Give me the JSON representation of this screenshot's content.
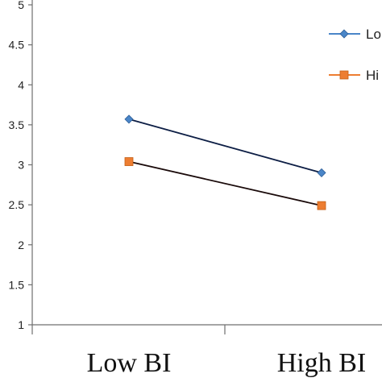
{
  "chart_data": {
    "type": "line",
    "categories": [
      "Low BI",
      "High BI"
    ],
    "ylim": [
      1,
      5
    ],
    "yticks": [
      "1",
      "1.5",
      "2",
      "2.5",
      "3",
      "3.5",
      "4",
      "4.5",
      "5"
    ],
    "series": [
      {
        "name": "Lo",
        "values": [
          3.57,
          2.9
        ],
        "color": "#0d1e45",
        "marker": "diamond",
        "marker_color": "#4a86c8"
      },
      {
        "name": "Hi",
        "values": [
          3.04,
          2.49
        ],
        "color": "#1a0a0a",
        "marker": "square",
        "marker_color": "#ed7d31"
      }
    ],
    "legend_position": "right",
    "grid": false
  }
}
